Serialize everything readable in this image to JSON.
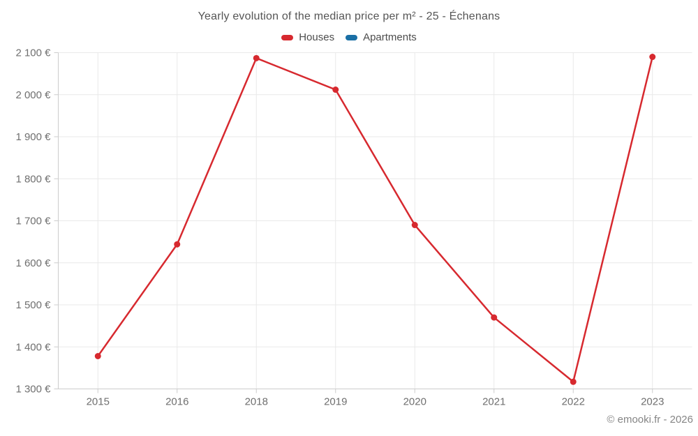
{
  "title": "Yearly evolution of the median price per m² - 25 - Échenans",
  "footer": "© emooki.fr - 2026",
  "chart_data": {
    "type": "line",
    "title": "Yearly evolution of the median price per m² - 25 - Échenans",
    "categories": [
      "2015",
      "2016",
      "2018",
      "2019",
      "2020",
      "2021",
      "2022",
      "2023"
    ],
    "series": [
      {
        "name": "Houses",
        "color": "#d7292f",
        "values": [
          1378,
          1644,
          2087,
          2012,
          1690,
          1470,
          1317,
          2090
        ]
      },
      {
        "name": "Apartments",
        "color": "#1a6fa5",
        "values": []
      }
    ],
    "xlabel": "",
    "ylabel": "",
    "y_axis": {
      "min": 1300,
      "max": 2100,
      "tick_step": 100,
      "tick_labels": [
        "1 300 €",
        "1 400 €",
        "1 500 €",
        "1 600 €",
        "1 700 €",
        "1 800 €",
        "1 900 €",
        "2 000 €",
        "2 100 €"
      ]
    },
    "legend_position": "top",
    "grid": true,
    "grid_color": "#e9e9e9",
    "axis_line_color": "#cccccc",
    "currency_suffix": "€"
  }
}
